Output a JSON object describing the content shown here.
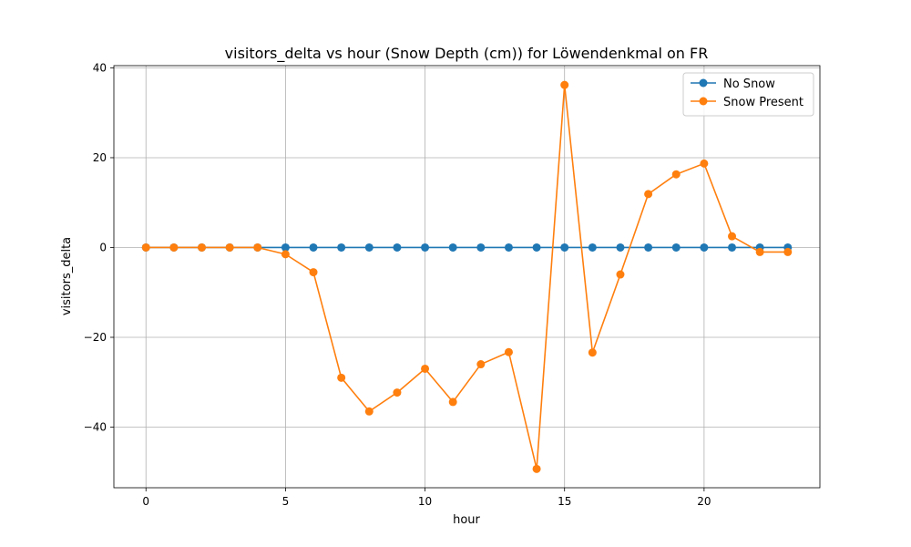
{
  "chart_data": {
    "type": "line",
    "title": "visitors_delta vs hour (Snow Depth (cm)) for Löwendenkmal on FR",
    "xlabel": "hour",
    "ylabel": "visitors_delta",
    "xlim": [
      -1.15,
      24.15
    ],
    "ylim": [
      -53.5,
      40.5
    ],
    "xticks": [
      0,
      5,
      10,
      15,
      20
    ],
    "yticks": [
      -40,
      -20,
      0,
      20,
      40
    ],
    "xtick_labels": [
      "0",
      "5",
      "10",
      "15",
      "20"
    ],
    "ytick_labels": [
      "−40",
      "−20",
      "0",
      "20",
      "40"
    ],
    "grid": true,
    "legend_position": "top-right",
    "x": [
      0,
      1,
      2,
      3,
      4,
      5,
      6,
      7,
      8,
      9,
      10,
      11,
      12,
      13,
      14,
      15,
      16,
      17,
      18,
      19,
      20,
      21,
      22,
      23
    ],
    "series": [
      {
        "name": "No Snow",
        "color": "#1f77b4",
        "values": [
          0,
          0,
          0,
          0,
          0,
          0,
          0,
          0,
          0,
          0,
          0,
          0,
          0,
          0,
          0,
          0,
          0,
          0,
          0,
          0,
          0,
          0,
          0,
          0
        ]
      },
      {
        "name": "Snow Present",
        "color": "#ff7f0e",
        "values": [
          0,
          0,
          0,
          0,
          0,
          -1.5,
          -5.5,
          -29,
          -36.5,
          -32.3,
          -27,
          -34.4,
          -26,
          -23.3,
          -49.3,
          36.2,
          -23.4,
          -6,
          11.9,
          16.3,
          18.7,
          2.5,
          -1,
          -1
        ]
      }
    ]
  }
}
